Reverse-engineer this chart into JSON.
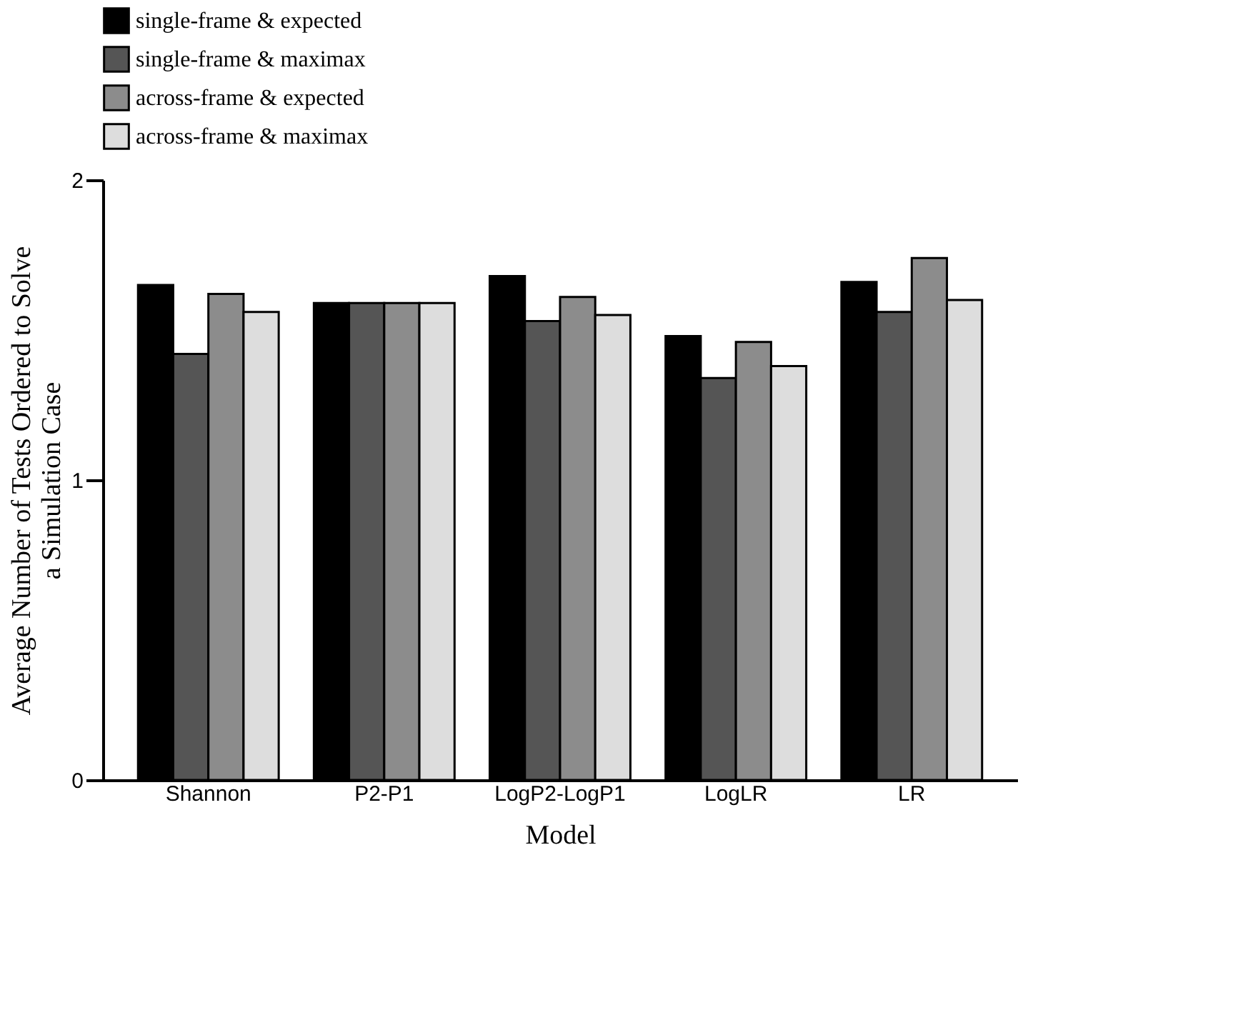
{
  "chart_data": {
    "type": "bar",
    "xlabel": "Model",
    "ylabel": "Average Number of Tests Ordered to Solve\na Simulation Case",
    "categories": [
      "Shannon",
      "P2-P1",
      "LogP2-LogP1",
      "LogLR",
      "LR"
    ],
    "series": [
      {
        "name": "single-frame & expected",
        "color": "#000000",
        "values": [
          1.65,
          1.59,
          1.68,
          1.48,
          1.66
        ]
      },
      {
        "name": "single-frame & maximax",
        "color": "#555555",
        "values": [
          1.42,
          1.59,
          1.53,
          1.34,
          1.56
        ]
      },
      {
        "name": "across-frame & expected",
        "color": "#8c8c8c",
        "values": [
          1.62,
          1.59,
          1.61,
          1.46,
          1.74
        ]
      },
      {
        "name": "across-frame & maximax",
        "color": "#dddddd",
        "values": [
          1.56,
          1.59,
          1.55,
          1.38,
          1.6
        ]
      }
    ],
    "ylim": [
      0,
      2
    ],
    "yticks": [
      0,
      1,
      2
    ],
    "grid": false,
    "legend": "top"
  }
}
